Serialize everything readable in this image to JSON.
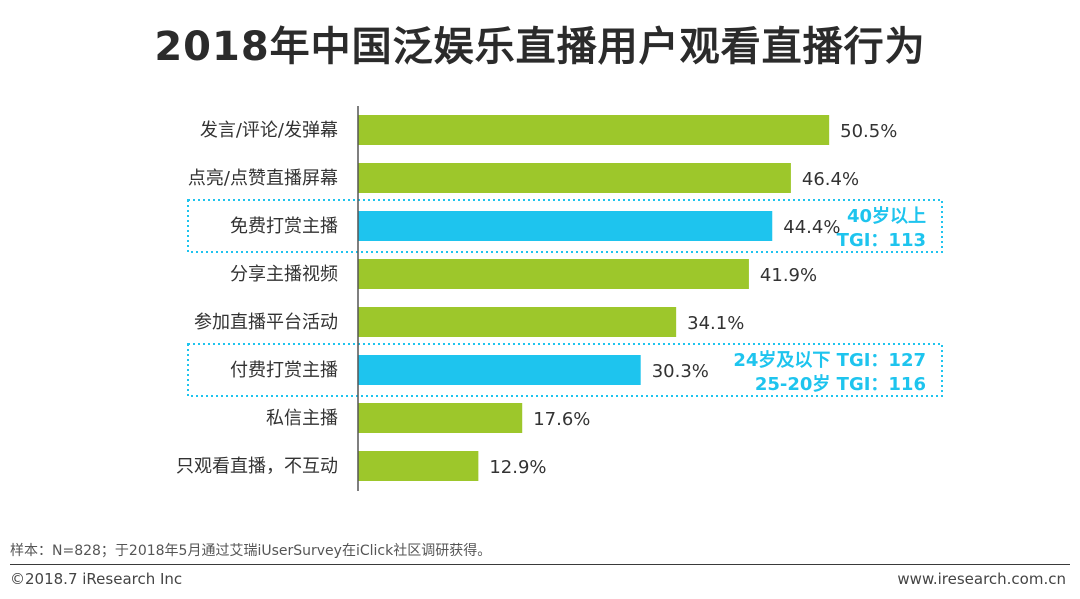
{
  "chart_data": {
    "type": "bar",
    "orientation": "horizontal",
    "title": "2018年中国泛娱乐直播用户观看直播行为",
    "categories": [
      "发言/评论/发弹幕",
      "点亮/点赞直播屏幕",
      "免费打赏主播",
      "分享主播视频",
      "参加直播平台活动",
      "付费打赏主播",
      "私信主播",
      "只观看直播，不互动"
    ],
    "values": [
      50.5,
      46.4,
      44.4,
      41.9,
      34.1,
      30.3,
      17.6,
      12.9
    ],
    "value_labels": [
      "50.5%",
      "46.4%",
      "44.4%",
      "41.9%",
      "34.1%",
      "30.3%",
      "17.6%",
      "12.9%"
    ],
    "highlighted": [
      false,
      false,
      true,
      false,
      false,
      true,
      false,
      false
    ],
    "colors": {
      "default": "#9dc72b",
      "highlight": "#1ec4ee",
      "annotation": "#1ec4ee"
    },
    "xlim": [
      0,
      60
    ],
    "xlabel": "",
    "ylabel": "",
    "annotations": [
      {
        "category_index": 2,
        "lines": [
          "40岁以上",
          "TGI：113"
        ]
      },
      {
        "category_index": 5,
        "lines": [
          "24岁及以下 TGI：127",
          "25-20岁 TGI：116"
        ]
      }
    ]
  },
  "footer": {
    "note": "样本：N=828；于2018年5月通过艾瑞iUserSurvey在iClick社区调研获得。",
    "copyright": "©2018.7 iResearch Inc",
    "website": "www.iresearch.com.cn"
  }
}
